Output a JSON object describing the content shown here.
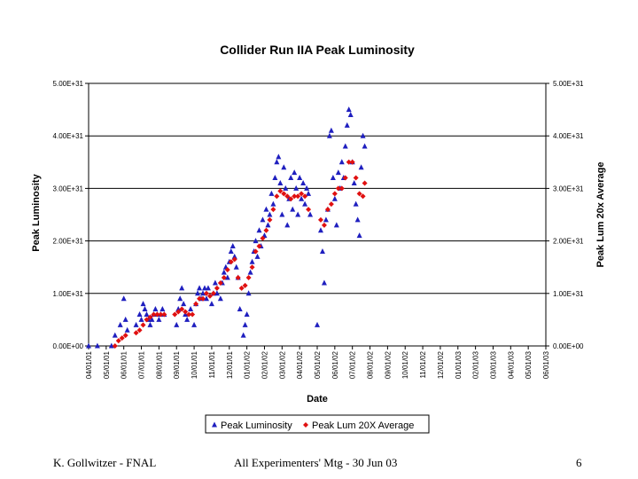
{
  "chart_data": {
    "type": "scatter",
    "title": "Collider Run IIA Peak Luminosity",
    "xlabel": "Date",
    "ylabel": "Peak Luminosity",
    "y2label": "Peak Lum 20x Average",
    "ylim": [
      0,
      5e+31
    ],
    "yticks": [
      "0.00E+00",
      "1.00E+31",
      "2.00E+31",
      "3.00E+31",
      "4.00E+31",
      "5.00E+31"
    ],
    "xticks": [
      "04/01/01",
      "05/01/01",
      "06/01/01",
      "07/01/01",
      "08/01/01",
      "09/01/01",
      "10/01/01",
      "11/01/01",
      "12/01/01",
      "01/01/02",
      "02/01/02",
      "03/01/02",
      "04/01/02",
      "05/01/02",
      "06/01/02",
      "07/01/02",
      "08/01/02",
      "09/01/02",
      "10/01/02",
      "11/01/02",
      "12/01/02",
      "01/01/03",
      "02/01/03",
      "03/01/03",
      "04/01/03",
      "05/01/03",
      "06/01/03"
    ],
    "legend_position": "bottom",
    "grid": true,
    "colors": {
      "peak": "#1f1fbf",
      "avg": "#e01010",
      "grid": "#000000"
    },
    "series": [
      {
        "name": "Peak Luminosity",
        "marker": "triangle",
        "points": [
          [
            0.0,
            0.0
          ],
          [
            0.5,
            0.0
          ],
          [
            1.3,
            0.0
          ],
          [
            1.5,
            0.2
          ],
          [
            1.8,
            0.4
          ],
          [
            2.0,
            0.9
          ],
          [
            2.1,
            0.5
          ],
          [
            2.2,
            0.3
          ],
          [
            2.7,
            0.4
          ],
          [
            2.9,
            0.6
          ],
          [
            3.0,
            0.5
          ],
          [
            3.1,
            0.8
          ],
          [
            3.2,
            0.7
          ],
          [
            3.3,
            0.6
          ],
          [
            3.4,
            0.5
          ],
          [
            3.5,
            0.4
          ],
          [
            3.6,
            0.5
          ],
          [
            3.7,
            0.6
          ],
          [
            3.8,
            0.7
          ],
          [
            3.9,
            0.6
          ],
          [
            4.0,
            0.5
          ],
          [
            4.1,
            0.6
          ],
          [
            4.2,
            0.7
          ],
          [
            4.3,
            0.6
          ],
          [
            5.0,
            0.4
          ],
          [
            5.1,
            0.7
          ],
          [
            5.2,
            0.9
          ],
          [
            5.3,
            1.1
          ],
          [
            5.4,
            0.8
          ],
          [
            5.5,
            0.6
          ],
          [
            5.6,
            0.5
          ],
          [
            5.8,
            0.7
          ],
          [
            6.0,
            0.4
          ],
          [
            6.1,
            0.8
          ],
          [
            6.2,
            1.0
          ],
          [
            6.3,
            1.1
          ],
          [
            6.4,
            0.9
          ],
          [
            6.5,
            1.0
          ],
          [
            6.6,
            1.1
          ],
          [
            6.7,
            0.9
          ],
          [
            6.8,
            1.1
          ],
          [
            7.0,
            0.8
          ],
          [
            7.1,
            1.0
          ],
          [
            7.2,
            1.2
          ],
          [
            7.3,
            1.0
          ],
          [
            7.5,
            0.9
          ],
          [
            7.6,
            1.2
          ],
          [
            7.7,
            1.4
          ],
          [
            7.8,
            1.5
          ],
          [
            7.9,
            1.3
          ],
          [
            8.0,
            1.6
          ],
          [
            8.1,
            1.8
          ],
          [
            8.2,
            1.9
          ],
          [
            8.3,
            1.7
          ],
          [
            8.4,
            1.5
          ],
          [
            8.5,
            1.3
          ],
          [
            8.6,
            0.7
          ],
          [
            8.8,
            0.2
          ],
          [
            8.9,
            0.4
          ],
          [
            9.0,
            0.6
          ],
          [
            9.1,
            1.0
          ],
          [
            9.2,
            1.4
          ],
          [
            9.3,
            1.6
          ],
          [
            9.4,
            1.8
          ],
          [
            9.5,
            2.0
          ],
          [
            9.6,
            1.7
          ],
          [
            9.7,
            2.2
          ],
          [
            9.8,
            1.9
          ],
          [
            9.9,
            2.4
          ],
          [
            10.0,
            2.1
          ],
          [
            10.1,
            2.6
          ],
          [
            10.2,
            2.3
          ],
          [
            10.3,
            2.5
          ],
          [
            10.4,
            2.9
          ],
          [
            10.5,
            2.7
          ],
          [
            10.6,
            3.2
          ],
          [
            10.7,
            3.5
          ],
          [
            10.8,
            3.6
          ],
          [
            10.9,
            3.1
          ],
          [
            11.0,
            2.5
          ],
          [
            11.1,
            3.4
          ],
          [
            11.2,
            3.0
          ],
          [
            11.3,
            2.3
          ],
          [
            11.4,
            2.8
          ],
          [
            11.5,
            3.2
          ],
          [
            11.6,
            2.6
          ],
          [
            11.7,
            3.3
          ],
          [
            11.8,
            3.0
          ],
          [
            11.9,
            2.5
          ],
          [
            12.0,
            3.2
          ],
          [
            12.1,
            2.8
          ],
          [
            12.2,
            3.1
          ],
          [
            12.3,
            2.7
          ],
          [
            12.4,
            3.0
          ],
          [
            12.5,
            2.9
          ],
          [
            12.6,
            2.5
          ],
          [
            13.0,
            0.4
          ],
          [
            13.2,
            2.2
          ],
          [
            13.3,
            1.8
          ],
          [
            13.4,
            1.2
          ],
          [
            13.5,
            2.4
          ],
          [
            13.6,
            2.6
          ],
          [
            13.7,
            4.0
          ],
          [
            13.8,
            4.1
          ],
          [
            13.9,
            3.2
          ],
          [
            14.0,
            2.8
          ],
          [
            14.1,
            2.3
          ],
          [
            14.2,
            3.3
          ],
          [
            14.3,
            3.0
          ],
          [
            14.4,
            3.5
          ],
          [
            14.5,
            3.2
          ],
          [
            14.6,
            3.8
          ],
          [
            14.7,
            4.2
          ],
          [
            14.8,
            4.5
          ],
          [
            14.9,
            4.4
          ],
          [
            15.0,
            3.5
          ],
          [
            15.1,
            3.1
          ],
          [
            15.2,
            2.7
          ],
          [
            15.3,
            2.4
          ],
          [
            15.4,
            2.1
          ],
          [
            15.5,
            3.4
          ],
          [
            15.6,
            4.0
          ],
          [
            15.7,
            3.8
          ]
        ]
      },
      {
        "name": "Peak Lum 20X Average",
        "marker": "diamond",
        "points": [
          [
            1.5,
            0.0
          ],
          [
            1.7,
            0.1
          ],
          [
            1.9,
            0.15
          ],
          [
            2.1,
            0.2
          ],
          [
            2.7,
            0.25
          ],
          [
            2.9,
            0.3
          ],
          [
            3.1,
            0.4
          ],
          [
            3.3,
            0.5
          ],
          [
            3.5,
            0.55
          ],
          [
            3.7,
            0.6
          ],
          [
            3.9,
            0.6
          ],
          [
            4.1,
            0.6
          ],
          [
            4.3,
            0.6
          ],
          [
            4.9,
            0.6
          ],
          [
            5.1,
            0.65
          ],
          [
            5.3,
            0.7
          ],
          [
            5.5,
            0.65
          ],
          [
            5.7,
            0.6
          ],
          [
            5.9,
            0.6
          ],
          [
            6.1,
            0.8
          ],
          [
            6.3,
            0.9
          ],
          [
            6.5,
            0.9
          ],
          [
            6.7,
            1.0
          ],
          [
            6.9,
            0.95
          ],
          [
            7.1,
            1.0
          ],
          [
            7.3,
            1.1
          ],
          [
            7.5,
            1.2
          ],
          [
            7.7,
            1.3
          ],
          [
            7.9,
            1.45
          ],
          [
            8.1,
            1.6
          ],
          [
            8.3,
            1.65
          ],
          [
            8.5,
            1.3
          ],
          [
            8.7,
            1.1
          ],
          [
            8.9,
            1.15
          ],
          [
            9.1,
            1.3
          ],
          [
            9.3,
            1.5
          ],
          [
            9.5,
            1.8
          ],
          [
            9.7,
            1.9
          ],
          [
            9.9,
            2.05
          ],
          [
            10.1,
            2.2
          ],
          [
            10.3,
            2.4
          ],
          [
            10.5,
            2.6
          ],
          [
            10.7,
            2.85
          ],
          [
            10.9,
            2.95
          ],
          [
            11.1,
            2.9
          ],
          [
            11.3,
            2.85
          ],
          [
            11.5,
            2.8
          ],
          [
            11.7,
            2.85
          ],
          [
            11.9,
            2.85
          ],
          [
            12.1,
            2.9
          ],
          [
            12.3,
            2.85
          ],
          [
            12.5,
            2.6
          ],
          [
            13.2,
            2.4
          ],
          [
            13.4,
            2.3
          ],
          [
            13.6,
            2.6
          ],
          [
            13.8,
            2.7
          ],
          [
            14.0,
            2.9
          ],
          [
            14.2,
            3.0
          ],
          [
            14.4,
            3.0
          ],
          [
            14.6,
            3.2
          ],
          [
            14.8,
            3.5
          ],
          [
            15.0,
            3.5
          ],
          [
            15.2,
            3.2
          ],
          [
            15.4,
            2.9
          ],
          [
            15.6,
            2.85
          ],
          [
            15.7,
            3.1
          ]
        ]
      }
    ]
  },
  "footer": {
    "left": "K. Gollwitzer - FNAL",
    "center": "All Experimenters' Mtg - 30 Jun 03",
    "right": "6"
  }
}
